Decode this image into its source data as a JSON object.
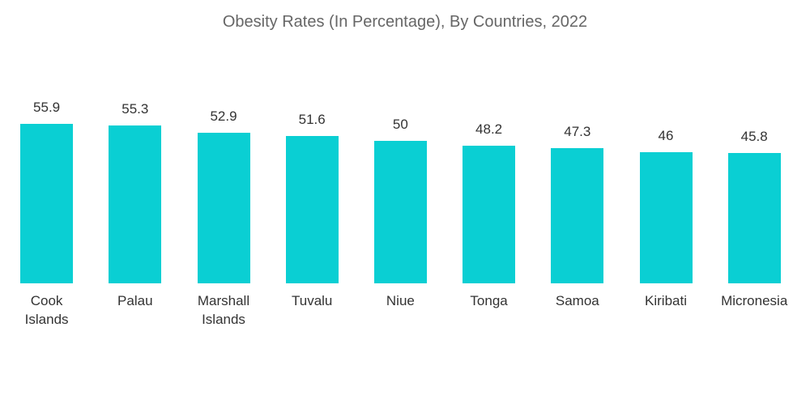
{
  "chart_data": {
    "type": "bar",
    "title": "Obesity Rates (In Percentage), By Countries, 2022",
    "categories": [
      "Cook Islands",
      "Palau",
      "Marshall Islands",
      "Tuvalu",
      "Niue",
      "Tonga",
      "Samoa",
      "Kiribati",
      "Micronesia"
    ],
    "values": [
      55.9,
      55.3,
      52.9,
      51.6,
      50,
      48.2,
      47.3,
      46,
      45.8
    ],
    "color": "#0acfd3"
  }
}
